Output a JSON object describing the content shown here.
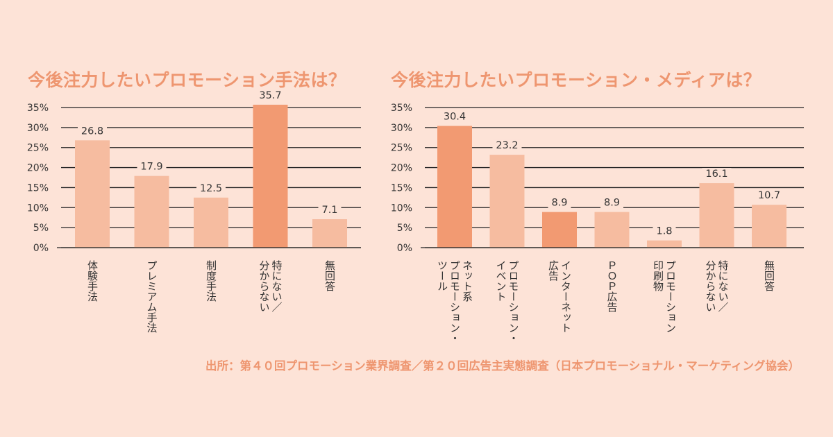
{
  "chart_data": [
    {
      "type": "bar",
      "title": "今後注力したいプロモーション手法は？",
      "categories": [
        "体験手法",
        "プレミアム手法",
        "制度手法",
        "特にない／分からない",
        "無回答"
      ],
      "values": [
        26.8,
        17.9,
        12.5,
        35.7,
        7.1
      ],
      "value_labels": [
        "26.8",
        "17.9",
        "12.5",
        "35.7",
        "7.1"
      ],
      "highlight": [
        false,
        false,
        false,
        true,
        false
      ],
      "ylim": [
        0,
        35
      ],
      "yticks": [
        "0%",
        "5%",
        "10%",
        "15%",
        "20%",
        "25%",
        "30%",
        "35%"
      ],
      "grid": true,
      "xlabel": "",
      "ylabel": ""
    },
    {
      "type": "bar",
      "title": "今後注力したいプロモーション・メディアは？",
      "categories": [
        "ネット系プロモーション・ツール",
        "プロモーション・イベント",
        "インターネット広告",
        "ＰＯＰ広告",
        "印刷物プロモーション",
        "特にない／分からない",
        "無回答"
      ],
      "values": [
        30.4,
        23.2,
        8.9,
        8.9,
        1.8,
        16.1,
        10.7
      ],
      "value_labels": [
        "30.4",
        "23.2",
        "8.9",
        "8.9",
        "1.8",
        "16.1",
        "10.7"
      ],
      "highlight": [
        true,
        false,
        true,
        false,
        false,
        false,
        false
      ],
      "ylim": [
        0,
        35
      ],
      "yticks": [
        "0%",
        "5%",
        "10%",
        "15%",
        "20%",
        "25%",
        "30%",
        "35%"
      ],
      "grid": true,
      "xlabel": "",
      "ylabel": ""
    }
  ],
  "category_label_columns": [
    [
      [
        "体験手法"
      ],
      [
        "プレミアム手法"
      ],
      [
        "制度手法"
      ],
      [
        "特にない／",
        "分からない"
      ],
      [
        "無回答"
      ]
    ],
    [
      [
        "ネット系",
        "プロモーション・",
        "ツール"
      ],
      [
        "プロモーション・",
        "イベント"
      ],
      [
        "インターネット",
        "広告"
      ],
      [
        "ＰＯＰ広告"
      ],
      [
        "プロモーション",
        "印刷物"
      ],
      [
        "特にない／",
        "分からない"
      ],
      [
        "無回答"
      ]
    ]
  ],
  "source": "出所：第４０回プロモーション業界調査／第２０回広告主実態調査（日本プロモーショナル・マーケティング協会）",
  "colors": {
    "background": "#fde3d7",
    "bar": "#f6bca0",
    "bar_highlight": "#f29a72",
    "title": "#ee9670",
    "text": "#333333",
    "grid": "#222222"
  }
}
